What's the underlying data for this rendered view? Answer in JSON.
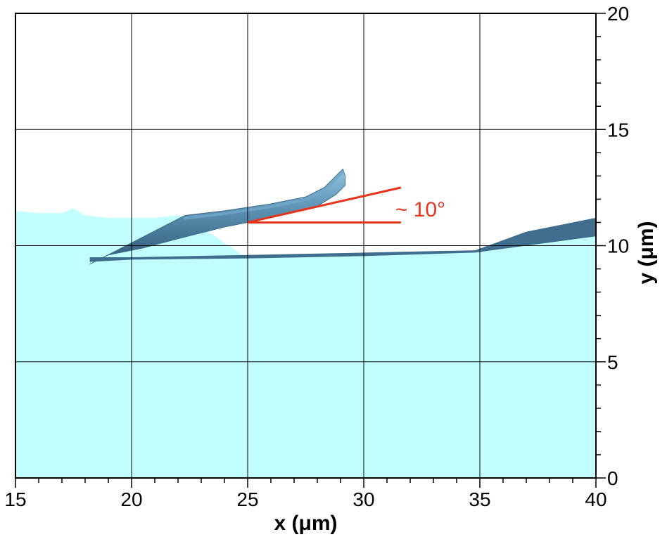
{
  "chart_data": {
    "type": "area",
    "title": "",
    "xlabel": "x (μm)",
    "ylabel": "y (μm)",
    "xlim": [
      15,
      40
    ],
    "ylim": [
      0,
      20
    ],
    "x_ticks": [
      15,
      20,
      25,
      30,
      35,
      40
    ],
    "y_ticks": [
      0,
      5,
      10,
      15,
      20
    ],
    "grid": true,
    "y_axis_side": "right",
    "colors": {
      "liquid": "#c2ffff",
      "interface": "#3f6e8e",
      "jet_highlight": "#6fa7c9",
      "annotation": "#e8341c",
      "grid": "#000000"
    },
    "liquid_surface": {
      "x": [
        15,
        16,
        17,
        17.5,
        18,
        19,
        20,
        21,
        22,
        22.4
      ],
      "y": [
        11.5,
        11.4,
        11.4,
        11.6,
        11.3,
        11.2,
        11.2,
        11.2,
        11.3,
        11.2
      ]
    },
    "jet": {
      "upper_x": [
        22.3,
        24,
        26,
        27.5,
        28.3,
        28.8,
        29.1,
        29.2
      ],
      "upper_y": [
        11.3,
        11.5,
        11.8,
        12.1,
        12.5,
        13.0,
        13.3,
        13.0
      ],
      "lower_x": [
        29.2,
        28.8,
        28.0,
        26,
        24,
        22,
        20.5,
        19,
        18.2
      ],
      "lower_y": [
        12.6,
        12.2,
        11.7,
        11.2,
        10.8,
        10.3,
        9.9,
        9.6,
        9.2
      ]
    },
    "film": {
      "x": [
        18.2,
        20,
        25,
        30,
        34.8,
        37,
        40
      ],
      "y_top": [
        9.5,
        9.5,
        9.6,
        9.7,
        9.8,
        10.6,
        11.2
      ],
      "y_bottom": [
        9.3,
        9.4,
        9.45,
        9.55,
        9.7,
        10.0,
        10.4
      ]
    },
    "annotation": {
      "text": "~ 10°",
      "angle_deg": 10,
      "vertex": [
        25,
        11
      ],
      "ray_end": [
        31.6,
        12.5
      ],
      "baseline_end": [
        31.6,
        11
      ],
      "label_at": [
        31.6,
        11.5
      ]
    }
  }
}
